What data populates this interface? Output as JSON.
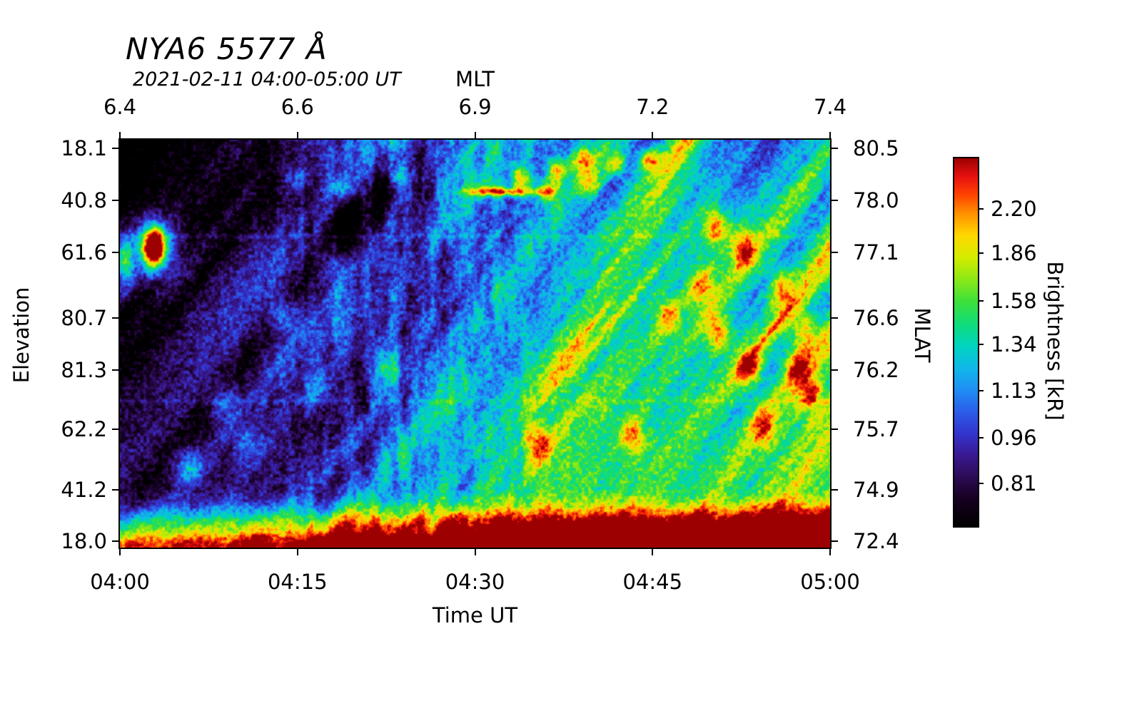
{
  "chart_data": {
    "type": "heatmap",
    "title": "NYA6 5577 Å",
    "subtitle": "2021-02-11 04:00-05:00 UT",
    "bottom_axis": {
      "label": "Time UT",
      "tick_labels": [
        "04:00",
        "04:15",
        "04:30",
        "04:45",
        "05:00"
      ],
      "tick_positions": [
        0,
        0.25,
        0.5,
        0.75,
        1
      ]
    },
    "top_axis": {
      "label": "MLT",
      "tick_labels": [
        "6.4",
        "6.6",
        "6.9",
        "7.2",
        "7.4"
      ],
      "tick_positions": [
        0,
        0.25,
        0.5,
        0.75,
        1
      ]
    },
    "left_axis": {
      "label": "Elevation",
      "tick_labels": [
        "18.1",
        "40.8",
        "61.6",
        "80.7",
        "81.3",
        "62.2",
        "41.2",
        "18.0"
      ],
      "tick_positions": [
        0.021,
        0.149,
        0.276,
        0.437,
        0.565,
        0.71,
        0.858,
        0.984
      ]
    },
    "right_axis": {
      "label": "MLAT",
      "tick_labels": [
        "80.5",
        "78.0",
        "77.1",
        "76.6",
        "76.2",
        "75.7",
        "74.9",
        "72.4"
      ],
      "tick_positions": [
        0.021,
        0.149,
        0.276,
        0.437,
        0.565,
        0.71,
        0.858,
        0.984
      ]
    },
    "colorbar": {
      "label": "Brightness [kR]",
      "tick_labels": [
        "2.20",
        "1.86",
        "1.58",
        "1.34",
        "1.13",
        "0.96",
        "0.81"
      ],
      "tick_positions_from_bottom": [
        0.862,
        0.742,
        0.612,
        0.494,
        0.368,
        0.24,
        0.116
      ],
      "scale": "log",
      "color_stops": [
        [
          0.0,
          "#000000"
        ],
        [
          0.07,
          "#14001e"
        ],
        [
          0.13,
          "#2b0a50"
        ],
        [
          0.19,
          "#38188e"
        ],
        [
          0.25,
          "#3333cc"
        ],
        [
          0.31,
          "#2b5ce8"
        ],
        [
          0.37,
          "#1f8df5"
        ],
        [
          0.43,
          "#0fb8e8"
        ],
        [
          0.49,
          "#00d4c0"
        ],
        [
          0.55,
          "#10dc78"
        ],
        [
          0.61,
          "#3ce03c"
        ],
        [
          0.67,
          "#8ae816"
        ],
        [
          0.73,
          "#d4ec00"
        ],
        [
          0.79,
          "#ffd800"
        ],
        [
          0.85,
          "#ff9000"
        ],
        [
          0.9,
          "#ff4400"
        ],
        [
          0.95,
          "#e81010"
        ],
        [
          1.0,
          "#9c0000"
        ]
      ]
    },
    "frame_color": "#000000",
    "background_color": "#ffffff"
  }
}
